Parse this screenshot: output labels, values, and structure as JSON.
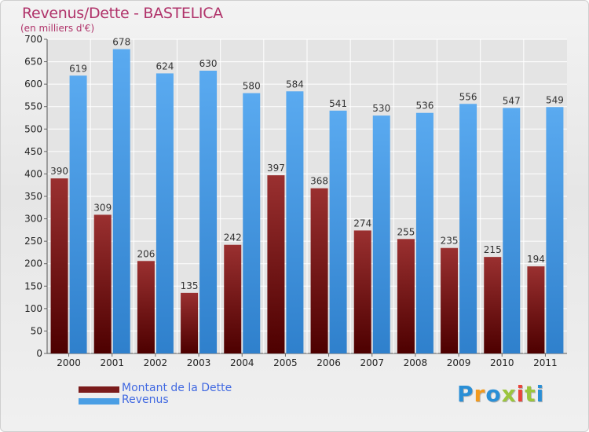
{
  "title": "Revenus/Dette - BASTELICA",
  "subtitle": "(en milliers d'€)",
  "logo": "Proxiti",
  "colors": {
    "dette": "#7a1b1b",
    "revenus": "#4a9ee4",
    "title": "#b0336a",
    "legend_text": "#4169e1"
  },
  "chart_data": {
    "type": "bar",
    "title": "Revenus/Dette - BASTELICA",
    "subtitle": "(en milliers d'€)",
    "categories": [
      "2000",
      "2001",
      "2002",
      "2003",
      "2004",
      "2005",
      "2006",
      "2007",
      "2008",
      "2009",
      "2010",
      "2011"
    ],
    "series": [
      {
        "name": "Montant de la Dette",
        "color": "#7a1b1b",
        "values": [
          390,
          309,
          206,
          135,
          242,
          397,
          368,
          274,
          255,
          235,
          215,
          194
        ]
      },
      {
        "name": "Revenus",
        "color": "#4a9ee4",
        "values": [
          619,
          678,
          624,
          630,
          580,
          584,
          541,
          530,
          536,
          556,
          547,
          549
        ]
      }
    ],
    "ylim": [
      0,
      700
    ],
    "yticks": [
      0,
      50,
      100,
      150,
      200,
      250,
      300,
      350,
      400,
      450,
      500,
      550,
      600,
      650,
      700
    ],
    "grid": true,
    "legend": "bottom-left"
  }
}
